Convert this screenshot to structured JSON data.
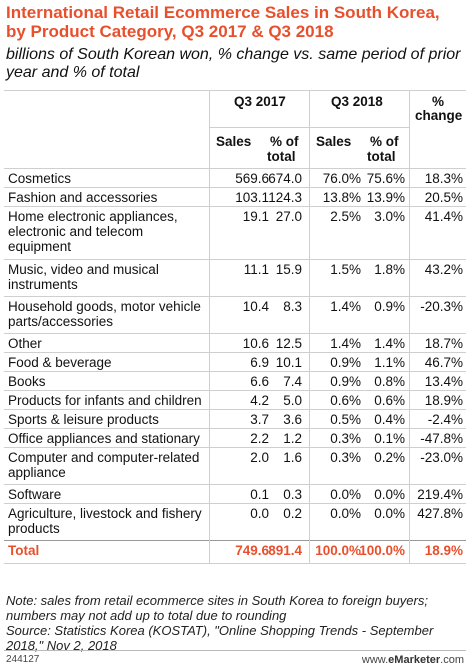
{
  "header": {
    "title": "International Retail Ecommerce Sales in South Korea, by Product Category, Q3 2017 & Q3 2018",
    "subtitle": "billions of South Korean won, % change vs. same period of prior year and % of total"
  },
  "columns": {
    "group_q3_2017": "Q3 2017",
    "group_q3_2018": "Q3 2018",
    "pct_change_1": "%",
    "pct_change_2": "change",
    "sales": "Sales",
    "pct_of_1": "% of",
    "pct_of_2": "total"
  },
  "chart_data": {
    "type": "table",
    "title": "International Retail Ecommerce Sales in South Korea, by Product Category, Q3 2017 & Q3 2018",
    "rows": [
      {
        "category": "Cosmetics",
        "sales_2017": "569.6",
        "share_2017": "674.0",
        "sales_2018": "76.0%",
        "share_2018": "75.6%",
        "change": "18.3%"
      },
      {
        "category": "Fashion and accessories",
        "sales_2017": "103.1",
        "share_2017": "124.3",
        "sales_2018": "13.8%",
        "share_2018": "13.9%",
        "change": "20.5%"
      },
      {
        "category": "Home electronic appliances, electronic and telecom equipment",
        "sales_2017": "19.1",
        "share_2017": "27.0",
        "sales_2018": "2.5%",
        "share_2018": "3.0%",
        "change": "41.4%"
      },
      {
        "category": "Music, video and musical instruments",
        "sales_2017": "11.1",
        "share_2017": "15.9",
        "sales_2018": "1.5%",
        "share_2018": "1.8%",
        "change": "43.2%"
      },
      {
        "category": "Household goods, motor vehicle parts/accessories",
        "sales_2017": "10.4",
        "share_2017": "8.3",
        "sales_2018": "1.4%",
        "share_2018": "0.9%",
        "change": "-20.3%"
      },
      {
        "category": "Other",
        "sales_2017": "10.6",
        "share_2017": "12.5",
        "sales_2018": "1.4%",
        "share_2018": "1.4%",
        "change": "18.7%"
      },
      {
        "category": "Food & beverage",
        "sales_2017": "6.9",
        "share_2017": "10.1",
        "sales_2018": "0.9%",
        "share_2018": "1.1%",
        "change": "46.7%"
      },
      {
        "category": "Books",
        "sales_2017": "6.6",
        "share_2017": "7.4",
        "sales_2018": "0.9%",
        "share_2018": "0.8%",
        "change": "13.4%"
      },
      {
        "category": "Products for infants and children",
        "sales_2017": "4.2",
        "share_2017": "5.0",
        "sales_2018": "0.6%",
        "share_2018": "0.6%",
        "change": "18.9%"
      },
      {
        "category": "Sports & leisure products",
        "sales_2017": "3.7",
        "share_2017": "3.6",
        "sales_2018": "0.5%",
        "share_2018": "0.4%",
        "change": "-2.4%"
      },
      {
        "category": "Office appliances and stationary",
        "sales_2017": "2.2",
        "share_2017": "1.2",
        "sales_2018": "0.3%",
        "share_2018": "0.1%",
        "change": "-47.8%"
      },
      {
        "category": "Computer and computer-related appliance",
        "sales_2017": "2.0",
        "share_2017": "1.6",
        "sales_2018": "0.3%",
        "share_2018": "0.2%",
        "change": "-23.0%"
      },
      {
        "category": "Software",
        "sales_2017": "0.1",
        "share_2017": "0.3",
        "sales_2018": "0.0%",
        "share_2018": "0.0%",
        "change": "219.4%"
      },
      {
        "category": "Agriculture, livestock and fishery products",
        "sales_2017": "0.0",
        "share_2017": "0.2",
        "sales_2018": "0.0%",
        "share_2018": "0.0%",
        "change": "427.8%"
      }
    ],
    "total": {
      "category": "Total",
      "sales_2017": "749.6",
      "share_2017": "891.4",
      "sales_2018": "100.0%",
      "share_2018": "100.0%",
      "change": "18.9%"
    }
  },
  "notes": {
    "line1": "Note: sales from retail ecommerce sites in South Korea to foreign buyers;",
    "line2": "numbers may not add up to total due to rounding",
    "line3": "Source: Statistics Korea (KOSTAT), \"Online Shopping Trends - September",
    "line4": "2018,\" Nov 2, 2018"
  },
  "footer": {
    "id": "244127",
    "brand_prefix": "www.",
    "brand_name": "eMarketer",
    "brand_suffix": ".com"
  },
  "colors": {
    "accent": "#e8502d",
    "rule": "#cfcfcf"
  }
}
